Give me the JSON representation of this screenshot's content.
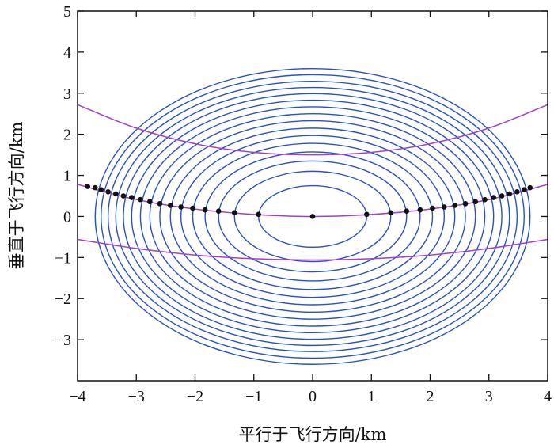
{
  "chart_data": {
    "type": "scatter",
    "xlabel": "平行于飞行方向/km",
    "ylabel": "垂直于飞行方向/km",
    "xlim": [
      -4,
      4
    ],
    "ylim": [
      -4,
      5
    ],
    "xticks": [
      -4,
      -3,
      -2,
      -1,
      0,
      1,
      2,
      3,
      4
    ],
    "yticks": [
      -3,
      -2,
      -1,
      0,
      1,
      2,
      3,
      4,
      5
    ],
    "xtick_labels": [
      "−4",
      "−3",
      "−2",
      "−1",
      "0",
      "1",
      "2",
      "3",
      "4"
    ],
    "ytick_labels": [
      "−3",
      "−2",
      "−1",
      "0",
      "1",
      "2",
      "3",
      "4",
      "5"
    ],
    "grid": false,
    "contours": {
      "center": [
        0,
        0
      ],
      "semi_axes_x": [
        0.92,
        1.33,
        1.6,
        1.83,
        2.04,
        2.24,
        2.42,
        2.6,
        2.77,
        2.93,
        3.08,
        3.22,
        3.35,
        3.48,
        3.6,
        3.7
      ],
      "semi_axes_y": [
        0.75,
        1.1,
        1.35,
        1.57,
        1.78,
        1.97,
        2.15,
        2.33,
        2.5,
        2.67,
        2.83,
        2.99,
        3.14,
        3.29,
        3.45,
        3.6
      ],
      "color": "#2850c8"
    },
    "series": [
      {
        "style": "curve",
        "color": "#a040d0",
        "x": [
          -4,
          -3,
          -2,
          -1,
          0,
          1,
          2,
          3,
          4
        ],
        "y": [
          2.72,
          2.15,
          1.77,
          1.56,
          1.5,
          1.56,
          1.77,
          2.15,
          2.72
        ]
      },
      {
        "style": "curve",
        "color": "#a040d0",
        "x": [
          -4,
          -3,
          -2,
          -1,
          0,
          1,
          2,
          3,
          4
        ],
        "y": [
          0.78,
          0.41,
          0.18,
          0.05,
          0.0,
          0.05,
          0.18,
          0.41,
          0.78
        ]
      },
      {
        "style": "curve",
        "color": "#a040d0",
        "x": [
          -4,
          -3,
          -2,
          -1,
          0,
          1,
          2,
          3,
          4
        ],
        "y": [
          -0.56,
          -0.78,
          -0.94,
          -1.03,
          -1.06,
          -1.03,
          -0.94,
          -0.78,
          -0.56
        ]
      },
      {
        "style": "points",
        "color": "#111111",
        "x": [
          0.0,
          0.92,
          1.33,
          1.6,
          1.83,
          2.04,
          2.24,
          2.42,
          2.6,
          2.77,
          2.93,
          3.08,
          3.22,
          3.35,
          3.48,
          3.6,
          3.7,
          -0.92,
          -1.33,
          -1.6,
          -1.83,
          -2.04,
          -2.24,
          -2.42,
          -2.6,
          -2.77,
          -2.93,
          -3.08,
          -3.22,
          -3.35,
          -3.48,
          -3.6,
          -3.7,
          -3.83
        ],
        "y": [
          0.0,
          0.05,
          0.09,
          0.13,
          0.16,
          0.2,
          0.23,
          0.27,
          0.31,
          0.36,
          0.41,
          0.46,
          0.5,
          0.55,
          0.6,
          0.65,
          0.7,
          0.05,
          0.09,
          0.13,
          0.16,
          0.2,
          0.23,
          0.27,
          0.31,
          0.36,
          0.41,
          0.46,
          0.5,
          0.55,
          0.6,
          0.65,
          0.7,
          0.73
        ]
      }
    ]
  }
}
